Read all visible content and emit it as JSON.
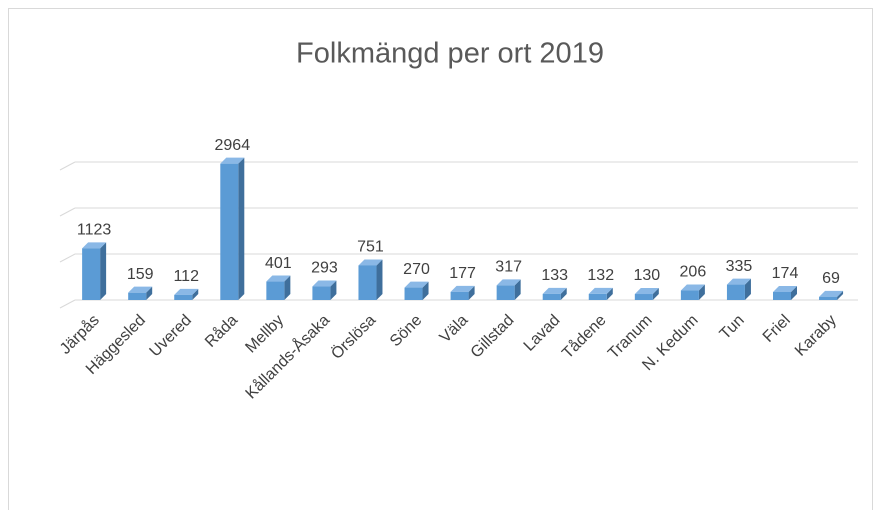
{
  "chart_data": {
    "type": "bar3d",
    "title": "Folkmängd  per ort 2019",
    "categories": [
      "Järpås",
      "Häggesled",
      "Uvered",
      "Råda",
      "Mellby",
      "Kållands-Åsaka",
      "Örslösa",
      "Söne",
      "Väla",
      "Gillstad",
      "Lavad",
      "Tådene",
      "Tranum",
      "N. Kedum",
      "Tun",
      "Friel",
      "Karaby"
    ],
    "values": [
      1123,
      159,
      112,
      2964,
      401,
      293,
      751,
      270,
      177,
      317,
      133,
      132,
      130,
      206,
      335,
      174,
      69
    ],
    "color": "#5b9bd5",
    "ylim": [
      0,
      3000
    ],
    "yticks": [
      0,
      1000,
      2000,
      3000
    ],
    "grid": true
  }
}
